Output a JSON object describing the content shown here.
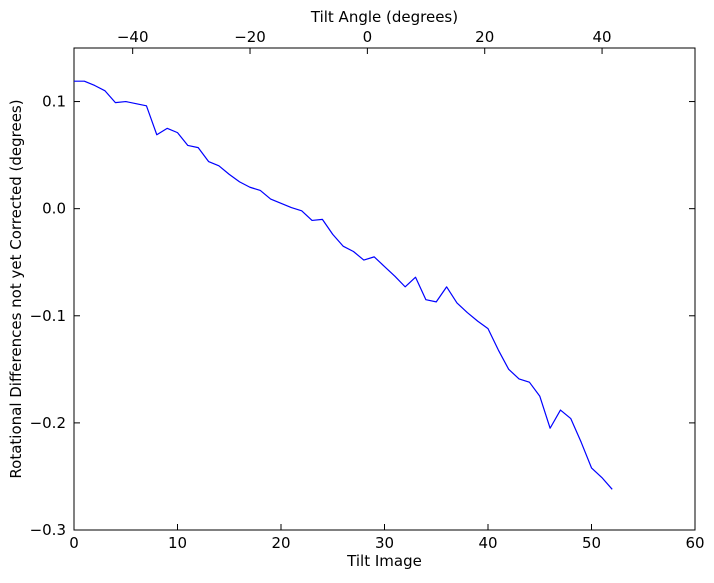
{
  "chart_data": {
    "type": "line",
    "title": "",
    "xlabel": "Tilt Image",
    "ylabel": "Rotational Differences not yet Corrected (degrees)",
    "x2label": "Tilt Angle (degrees)",
    "xlim": [
      0,
      60
    ],
    "ylim": [
      -0.3,
      0.15
    ],
    "x2lim": [
      -50,
      55.84
    ],
    "grid": false,
    "legend": "none",
    "line_color": "#0000ff",
    "x_ticks": [
      0,
      10,
      20,
      30,
      40,
      50,
      60
    ],
    "x_tick_labels": [
      "0",
      "10",
      "20",
      "30",
      "40",
      "50",
      "60"
    ],
    "y_ticks": [
      -0.3,
      -0.2,
      -0.1,
      0.0,
      0.1
    ],
    "y_tick_labels": [
      "−0.3",
      "−0.2",
      "−0.1",
      "0.0",
      "0.1"
    ],
    "x2_ticks": [
      -40,
      -20,
      0,
      20,
      40
    ],
    "x2_tick_labels": [
      "−40",
      "−20",
      "0",
      "20",
      "40"
    ],
    "series": [
      {
        "x": [
          0,
          1,
          2,
          3,
          4,
          5,
          6,
          7,
          8,
          9,
          10,
          11,
          12,
          13,
          14,
          15,
          16,
          17,
          18,
          19,
          20,
          21,
          22,
          23,
          24,
          25,
          26,
          27,
          28,
          29,
          30,
          31,
          32,
          33,
          34,
          35,
          36,
          37,
          38,
          39,
          40,
          41,
          42,
          43,
          44,
          45,
          46,
          47,
          48,
          49,
          50,
          51,
          52
        ],
        "y": [
          0.119,
          0.119,
          0.115,
          0.11,
          0.099,
          0.1,
          0.098,
          0.096,
          0.069,
          0.075,
          0.071,
          0.059,
          0.057,
          0.044,
          0.04,
          0.032,
          0.025,
          0.02,
          0.017,
          0.009,
          0.005,
          0.001,
          -0.002,
          -0.011,
          -0.01,
          -0.024,
          -0.035,
          -0.04,
          -0.048,
          -0.045,
          -0.054,
          -0.063,
          -0.073,
          -0.064,
          -0.085,
          -0.087,
          -0.073,
          -0.088,
          -0.097,
          -0.105,
          -0.112,
          -0.132,
          -0.15,
          -0.159,
          -0.162,
          -0.175,
          -0.205,
          -0.188,
          -0.196,
          -0.218,
          -0.242,
          -0.251,
          -0.262
        ]
      }
    ]
  }
}
